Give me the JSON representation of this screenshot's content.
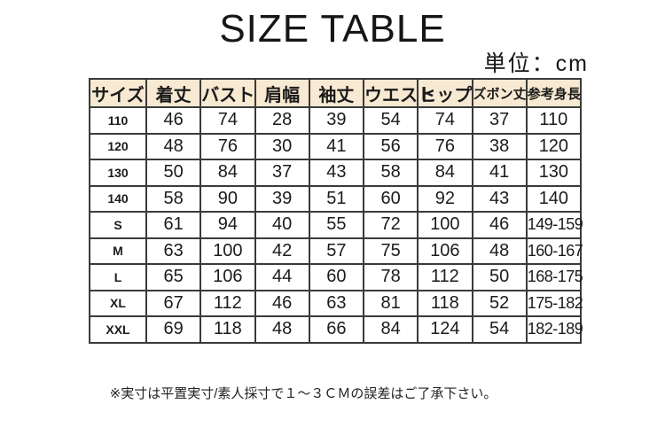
{
  "title": "SIZE TABLE",
  "unit_label": "単位：cm",
  "table": {
    "headers": [
      "サイズ",
      "着丈",
      "バスト",
      "肩幅",
      "袖丈",
      "ウエスト",
      "ヒップ",
      "ズボン丈",
      "参考身長"
    ],
    "small_header_indexes": [
      7,
      8
    ],
    "rows": [
      [
        "110",
        "46",
        "74",
        "28",
        "39",
        "54",
        "74",
        "37",
        "110"
      ],
      [
        "120",
        "48",
        "76",
        "30",
        "41",
        "56",
        "76",
        "38",
        "120"
      ],
      [
        "130",
        "50",
        "84",
        "37",
        "43",
        "58",
        "84",
        "41",
        "130"
      ],
      [
        "140",
        "58",
        "90",
        "39",
        "51",
        "60",
        "92",
        "43",
        "140"
      ],
      [
        "S",
        "61",
        "94",
        "40",
        "55",
        "72",
        "100",
        "46",
        "149-159"
      ],
      [
        "M",
        "63",
        "100",
        "42",
        "57",
        "75",
        "106",
        "48",
        "160-167"
      ],
      [
        "L",
        "65",
        "106",
        "44",
        "60",
        "78",
        "112",
        "50",
        "168-175"
      ],
      [
        "XL",
        "67",
        "112",
        "46",
        "63",
        "81",
        "118",
        "52",
        "175-182"
      ],
      [
        "XXL",
        "69",
        "118",
        "48",
        "66",
        "84",
        "124",
        "54",
        "182-189"
      ]
    ]
  },
  "footnote": "※実寸は平置実寸/素人採寸で１～３ＣＭの誤差はご了承下さい。",
  "colors": {
    "header_bg": "#f7e9d2",
    "border": "#3a3a3a",
    "text": "#1b1b1b"
  },
  "chart_data": {
    "type": "table",
    "title": "SIZE TABLE",
    "unit": "cm",
    "columns": [
      "サイズ",
      "着丈",
      "バスト",
      "肩幅",
      "袖丈",
      "ウエスト",
      "ヒップ",
      "ズボン丈",
      "参考身長"
    ],
    "rows": [
      {
        "サイズ": "110",
        "着丈": 46,
        "バスト": 74,
        "肩幅": 28,
        "袖丈": 39,
        "ウエスト": 54,
        "ヒップ": 74,
        "ズボン丈": 37,
        "参考身長": "110"
      },
      {
        "サイズ": "120",
        "着丈": 48,
        "バスト": 76,
        "肩幅": 30,
        "袖丈": 41,
        "ウエスト": 56,
        "ヒップ": 76,
        "ズボン丈": 38,
        "参考身長": "120"
      },
      {
        "サイズ": "130",
        "着丈": 50,
        "バスト": 84,
        "肩幅": 37,
        "袖丈": 43,
        "ウエスト": 58,
        "ヒップ": 84,
        "ズボン丈": 41,
        "参考身長": "130"
      },
      {
        "サイズ": "140",
        "着丈": 58,
        "バスト": 90,
        "肩幅": 39,
        "袖丈": 51,
        "ウエスト": 60,
        "ヒップ": 92,
        "ズボン丈": 43,
        "参考身長": "140"
      },
      {
        "サイズ": "S",
        "着丈": 61,
        "バスト": 94,
        "肩幅": 40,
        "袖丈": 55,
        "ウエスト": 72,
        "ヒップ": 100,
        "ズボン丈": 46,
        "参考身長": "149-159"
      },
      {
        "サイズ": "M",
        "着丈": 63,
        "バスト": 100,
        "肩幅": 42,
        "袖丈": 57,
        "ウエスト": 75,
        "ヒップ": 106,
        "ズボン丈": 48,
        "参考身長": "160-167"
      },
      {
        "サイズ": "L",
        "着丈": 65,
        "バスト": 106,
        "肩幅": 44,
        "袖丈": 60,
        "ウエスト": 78,
        "ヒップ": 112,
        "ズボン丈": 50,
        "参考身長": "168-175"
      },
      {
        "サイズ": "XL",
        "着丈": 67,
        "バスト": 112,
        "肩幅": 46,
        "袖丈": 63,
        "ウエスト": 81,
        "ヒップ": 118,
        "ズボン丈": 52,
        "参考身長": "175-182"
      },
      {
        "サイズ": "XXL",
        "着丈": 69,
        "バスト": 118,
        "肩幅": 48,
        "袖丈": 66,
        "ウエスト": 84,
        "ヒップ": 124,
        "ズボン丈": 54,
        "参考身長": "182-189"
      }
    ],
    "footnote": "※実寸は平置実寸/素人採寸で１～３ＣＭの誤差はご了承下さい。"
  }
}
